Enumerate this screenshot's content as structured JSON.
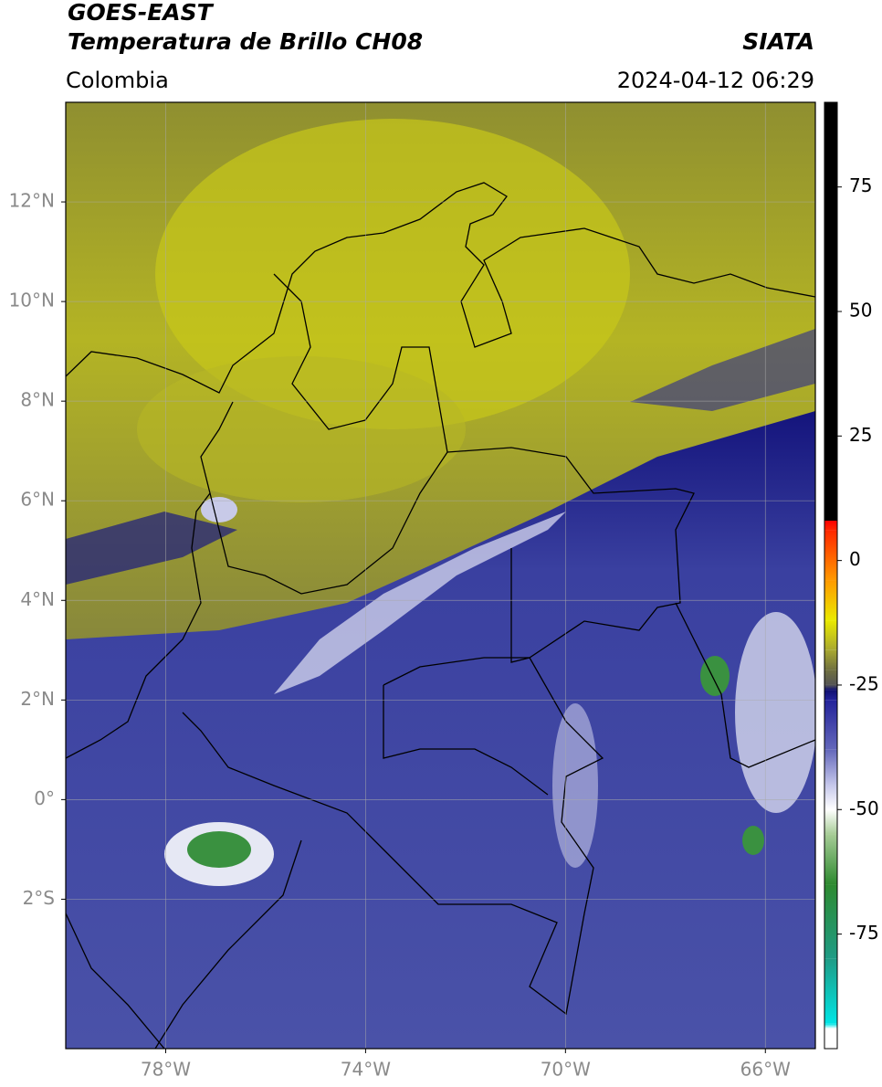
{
  "header": {
    "satellite": "GOES-EAST",
    "product": "Temperatura de Brillo CH08",
    "source": "SIATA",
    "region": "Colombia",
    "datetime": "2024-04-12 06:29"
  },
  "map": {
    "xlim": [
      -80,
      -65
    ],
    "ylim": [
      -5,
      14
    ],
    "xticks": [
      {
        "value": -78,
        "label": "78°W"
      },
      {
        "value": -74,
        "label": "74°W"
      },
      {
        "value": -70,
        "label": "70°W"
      },
      {
        "value": -66,
        "label": "66°W"
      }
    ],
    "yticks": [
      {
        "value": 12,
        "label": "12°N"
      },
      {
        "value": 10,
        "label": "10°N"
      },
      {
        "value": 8,
        "label": "8°N"
      },
      {
        "value": 6,
        "label": "6°N"
      },
      {
        "value": 4,
        "label": "4°N"
      },
      {
        "value": 2,
        "label": "2°N"
      },
      {
        "value": 0,
        "label": "0°"
      },
      {
        "value": -2,
        "label": "2°S"
      }
    ],
    "grid": true
  },
  "colorbar": {
    "lim": [
      -98,
      92
    ],
    "ticks": [
      75,
      50,
      25,
      0,
      -25,
      -50,
      -75
    ],
    "stops": [
      {
        "value": -98,
        "color": "#ffffff"
      },
      {
        "value": -94,
        "color": "#ffffff"
      },
      {
        "value": -93,
        "color": "#00e5e5"
      },
      {
        "value": -80,
        "color": "#1f9c86"
      },
      {
        "value": -65,
        "color": "#2e8a30"
      },
      {
        "value": -55,
        "color": "#a6cc96"
      },
      {
        "value": -50,
        "color": "#ffffff"
      },
      {
        "value": -45,
        "color": "#c4c6ea"
      },
      {
        "value": -38,
        "color": "#6468bb"
      },
      {
        "value": -28,
        "color": "#22229a"
      },
      {
        "value": -26,
        "color": "#101070"
      },
      {
        "value": -25,
        "color": "#555555"
      },
      {
        "value": -22,
        "color": "#707040"
      },
      {
        "value": -18,
        "color": "#a8a830"
      },
      {
        "value": -12,
        "color": "#eaea00"
      },
      {
        "value": -4,
        "color": "#ff9a00"
      },
      {
        "value": 6,
        "color": "#ff2800"
      },
      {
        "value": 8,
        "color": "#ff0000"
      },
      {
        "value": 8,
        "color": "#000000"
      },
      {
        "value": 92,
        "color": "#000000"
      }
    ]
  }
}
